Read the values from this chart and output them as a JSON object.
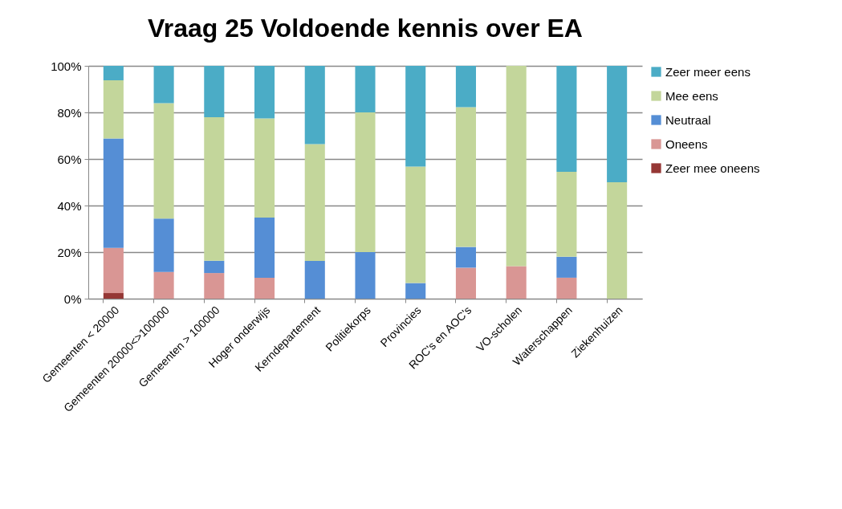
{
  "chart_data": {
    "type": "bar",
    "title": "Vraag 25 Voldoende kennis over EA",
    "stacked": true,
    "categories": [
      "Gemeenten < 20000",
      "Gemeenten 20000<>100000",
      "Gemeenten > 100000",
      "Hoger onderwijs",
      "Kerndepartement",
      "Politiekorps",
      "Provincies",
      "ROC's en AOC's",
      "VO-scholen",
      "Waterschappen",
      "Ziekenhuizen"
    ],
    "series": [
      {
        "name": "Zeer mee oneens",
        "color": "#953735",
        "values": [
          2.4,
          0,
          0,
          0,
          0,
          0,
          0,
          0,
          0,
          0,
          0
        ]
      },
      {
        "name": "Oneens",
        "color": "#d99694",
        "values": [
          19.4,
          11.5,
          11,
          9,
          0,
          0,
          0,
          13.3,
          14,
          9,
          0
        ]
      },
      {
        "name": "Neutraal",
        "color": "#558ed5",
        "values": [
          47,
          22.9,
          5.3,
          25.8,
          16.2,
          20,
          6.7,
          8.9,
          0,
          9,
          0
        ]
      },
      {
        "name": "Mee eens",
        "color": "#c3d69b",
        "values": [
          25,
          49.6,
          61.6,
          42.6,
          50.2,
          60,
          50,
          60,
          86,
          36.5,
          50
        ]
      },
      {
        "name": "Zeer meer eens",
        "color": "#4bacc6",
        "values": [
          6.2,
          16,
          22.1,
          22.6,
          33.6,
          20,
          43.3,
          17.8,
          0,
          45.5,
          50
        ]
      }
    ],
    "ylim": [
      0,
      100
    ],
    "yticks": [
      {
        "value": 0,
        "label": "0%"
      },
      {
        "value": 20,
        "label": "20%"
      },
      {
        "value": 40,
        "label": "40%"
      },
      {
        "value": 60,
        "label": "60%"
      },
      {
        "value": 80,
        "label": "80%"
      },
      {
        "value": 100,
        "label": "100%"
      }
    ],
    "grid": "y",
    "legend": "right"
  }
}
